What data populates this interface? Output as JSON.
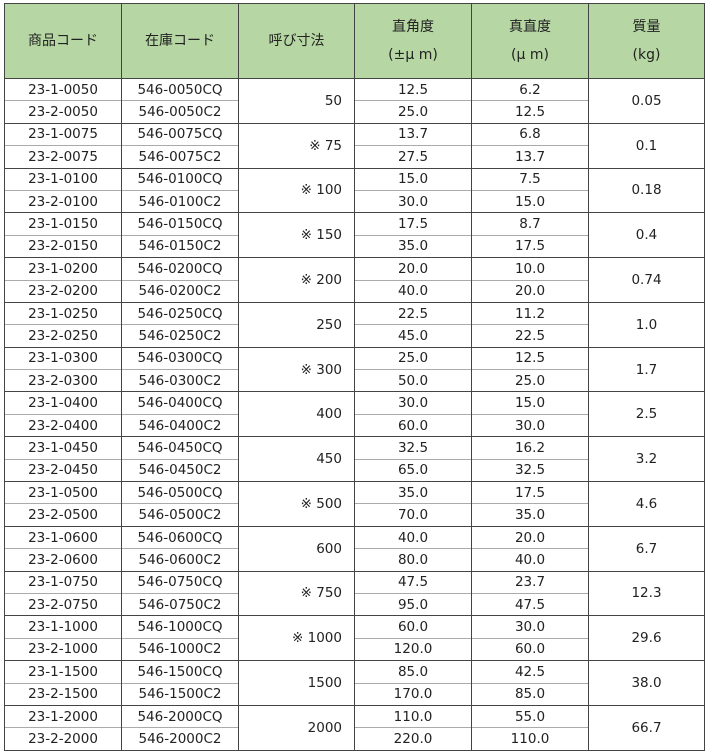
{
  "headers": [
    "商品コード",
    "在庫コード",
    "呼び寸法",
    [
      "直角度",
      "(±μ m)"
    ],
    [
      "真直度",
      "(μ m)"
    ],
    [
      "質量",
      "(kg)"
    ]
  ],
  "colors": {
    "header_bg": "#b6d7a3",
    "border": "#444444"
  },
  "groups": [
    {
      "size": "50",
      "mass": "0.05",
      "rows": [
        [
          "23-1-0050",
          "546-0050CQ",
          "12.5",
          "6.2"
        ],
        [
          "23-2-0050",
          "546-0050C2",
          "25.0",
          "12.5"
        ]
      ]
    },
    {
      "size": "※ 75",
      "mass": "0.1",
      "rows": [
        [
          "23-1-0075",
          "546-0075CQ",
          "13.7",
          "6.8"
        ],
        [
          "23-2-0075",
          "546-0075C2",
          "27.5",
          "13.7"
        ]
      ]
    },
    {
      "size": "※ 100",
      "mass": "0.18",
      "rows": [
        [
          "23-1-0100",
          "546-0100CQ",
          "15.0",
          "7.5"
        ],
        [
          "23-2-0100",
          "546-0100C2",
          "30.0",
          "15.0"
        ]
      ]
    },
    {
      "size": "※ 150",
      "mass": "0.4",
      "rows": [
        [
          "23-1-0150",
          "546-0150CQ",
          "17.5",
          "8.7"
        ],
        [
          "23-2-0150",
          "546-0150C2",
          "35.0",
          "17.5"
        ]
      ]
    },
    {
      "size": "※ 200",
      "mass": "0.74",
      "rows": [
        [
          "23-1-0200",
          "546-0200CQ",
          "20.0",
          "10.0"
        ],
        [
          "23-2-0200",
          "546-0200C2",
          "40.0",
          "20.0"
        ]
      ]
    },
    {
      "size": "250",
      "mass": "1.0",
      "rows": [
        [
          "23-1-0250",
          "546-0250CQ",
          "22.5",
          "11.2"
        ],
        [
          "23-2-0250",
          "546-0250C2",
          "45.0",
          "22.5"
        ]
      ]
    },
    {
      "size": "※ 300",
      "mass": "1.7",
      "rows": [
        [
          "23-1-0300",
          "546-0300CQ",
          "25.0",
          "12.5"
        ],
        [
          "23-2-0300",
          "546-0300C2",
          "50.0",
          "25.0"
        ]
      ]
    },
    {
      "size": "400",
      "mass": "2.5",
      "rows": [
        [
          "23-1-0400",
          "546-0400CQ",
          "30.0",
          "15.0"
        ],
        [
          "23-2-0400",
          "546-0400C2",
          "60.0",
          "30.0"
        ]
      ]
    },
    {
      "size": "450",
      "mass": "3.2",
      "rows": [
        [
          "23-1-0450",
          "546-0450CQ",
          "32.5",
          "16.2"
        ],
        [
          "23-2-0450",
          "546-0450C2",
          "65.0",
          "32.5"
        ]
      ]
    },
    {
      "size": "※ 500",
      "mass": "4.6",
      "rows": [
        [
          "23-1-0500",
          "546-0500CQ",
          "35.0",
          "17.5"
        ],
        [
          "23-2-0500",
          "546-0500C2",
          "70.0",
          "35.0"
        ]
      ]
    },
    {
      "size": "600",
      "mass": "6.7",
      "rows": [
        [
          "23-1-0600",
          "546-0600CQ",
          "40.0",
          "20.0"
        ],
        [
          "23-2-0600",
          "546-0600C2",
          "80.0",
          "40.0"
        ]
      ]
    },
    {
      "size": "※ 750",
      "mass": "12.3",
      "rows": [
        [
          "23-1-0750",
          "546-0750CQ",
          "47.5",
          "23.7"
        ],
        [
          "23-2-0750",
          "546-0750C2",
          "95.0",
          "47.5"
        ]
      ]
    },
    {
      "size": "※ 1000",
      "mass": "29.6",
      "rows": [
        [
          "23-1-1000",
          "546-1000CQ",
          "60.0",
          "30.0"
        ],
        [
          "23-2-1000",
          "546-1000C2",
          "120.0",
          "60.0"
        ]
      ]
    },
    {
      "size": "1500",
      "mass": "38.0",
      "rows": [
        [
          "23-1-1500",
          "546-1500CQ",
          "85.0",
          "42.5"
        ],
        [
          "23-2-1500",
          "546-1500C2",
          "170.0",
          "85.0"
        ]
      ]
    },
    {
      "size": "2000",
      "mass": "66.7",
      "rows": [
        [
          "23-1-2000",
          "546-2000CQ",
          "110.0",
          "55.0"
        ],
        [
          "23-2-2000",
          "546-2000C2",
          "220.0",
          "110.0"
        ]
      ]
    }
  ]
}
